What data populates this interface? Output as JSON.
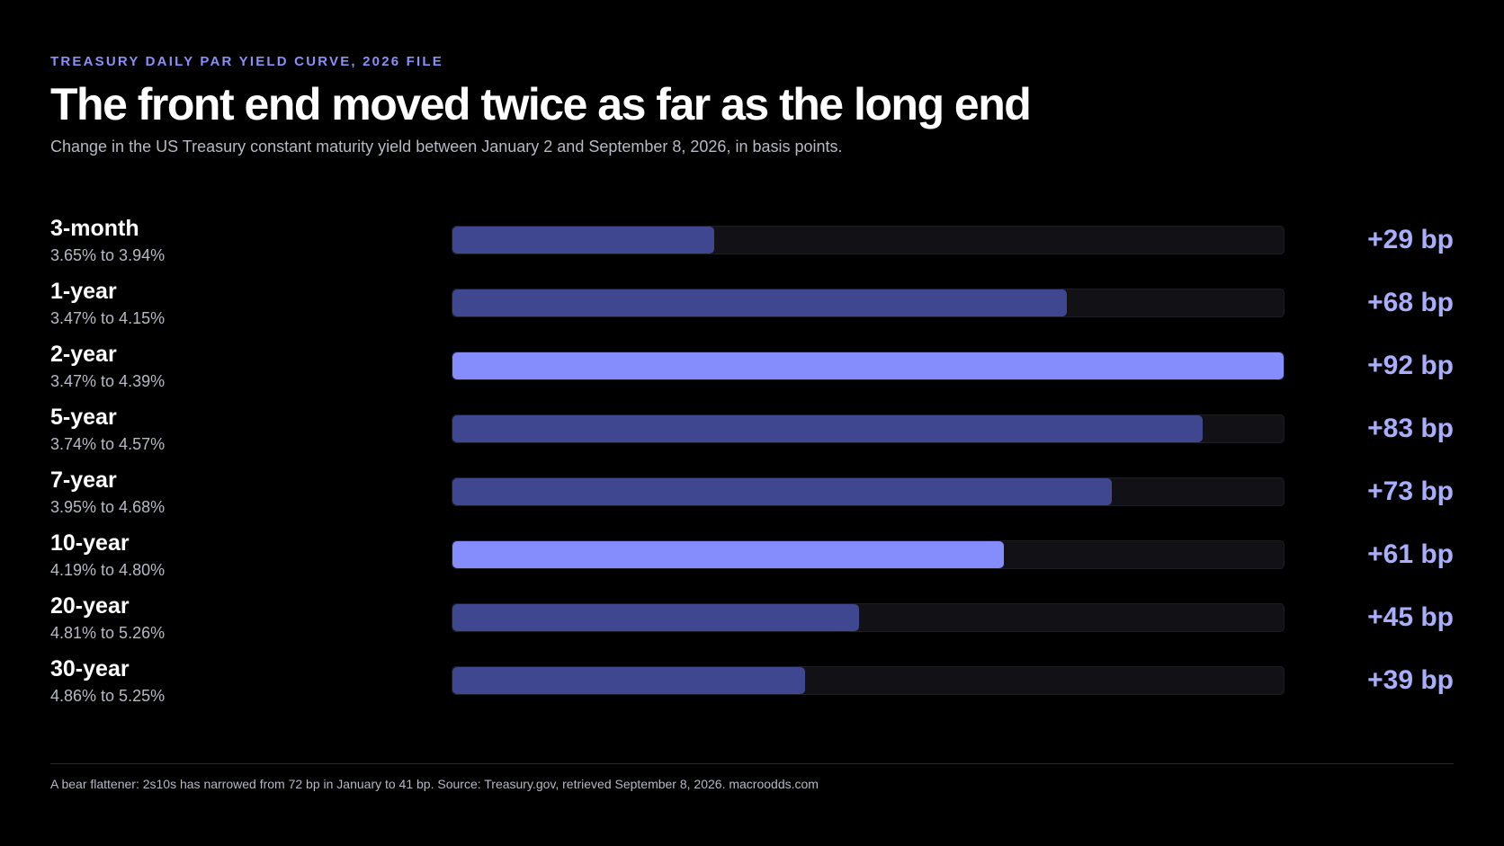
{
  "eyebrow": "TREASURY DAILY PAR YIELD CURVE, 2026 FILE",
  "title": "The front end moved twice as far as the long end",
  "subtitle": "Change in the US Treasury constant maturity yield between January 2 and September 8, 2026, in basis points.",
  "footnote": "A bear flattener: 2s10s has narrowed from 72 bp in January to 41 bp. Source: Treasury.gov, retrieved September 8, 2026. macroodds.com",
  "colors": {
    "background": "#000000",
    "bar_default": "#3f4791",
    "bar_highlight": "#858cfb",
    "track": "#121216",
    "value_text": "#a9aefb",
    "eyebrow": "#8b90f8"
  },
  "chart_data": {
    "type": "bar",
    "orientation": "horizontal",
    "title": "The front end moved twice as far as the long end",
    "xlim": [
      0,
      92
    ],
    "categories": [
      "3-month",
      "1-year",
      "2-year",
      "5-year",
      "7-year",
      "10-year",
      "20-year",
      "30-year"
    ],
    "values": [
      29,
      68,
      92,
      83,
      73,
      61,
      45,
      39
    ],
    "unit": "bp",
    "highlighted": [
      "2-year",
      "10-year"
    ],
    "rows": [
      {
        "label": "3-month",
        "range": "3.65% to 3.94%",
        "value": 29,
        "value_label": "+29 bp",
        "highlight": false
      },
      {
        "label": "1-year",
        "range": "3.47% to 4.15%",
        "value": 68,
        "value_label": "+68 bp",
        "highlight": false
      },
      {
        "label": "2-year",
        "range": "3.47% to 4.39%",
        "value": 92,
        "value_label": "+92 bp",
        "highlight": true
      },
      {
        "label": "5-year",
        "range": "3.74% to 4.57%",
        "value": 83,
        "value_label": "+83 bp",
        "highlight": false
      },
      {
        "label": "7-year",
        "range": "3.95% to 4.68%",
        "value": 73,
        "value_label": "+73 bp",
        "highlight": false
      },
      {
        "label": "10-year",
        "range": "4.19% to 4.80%",
        "value": 61,
        "value_label": "+61 bp",
        "highlight": true
      },
      {
        "label": "20-year",
        "range": "4.81% to 5.26%",
        "value": 45,
        "value_label": "+45 bp",
        "highlight": false
      },
      {
        "label": "30-year",
        "range": "4.86% to 5.25%",
        "value": 39,
        "value_label": "+39 bp",
        "highlight": false
      }
    ]
  }
}
